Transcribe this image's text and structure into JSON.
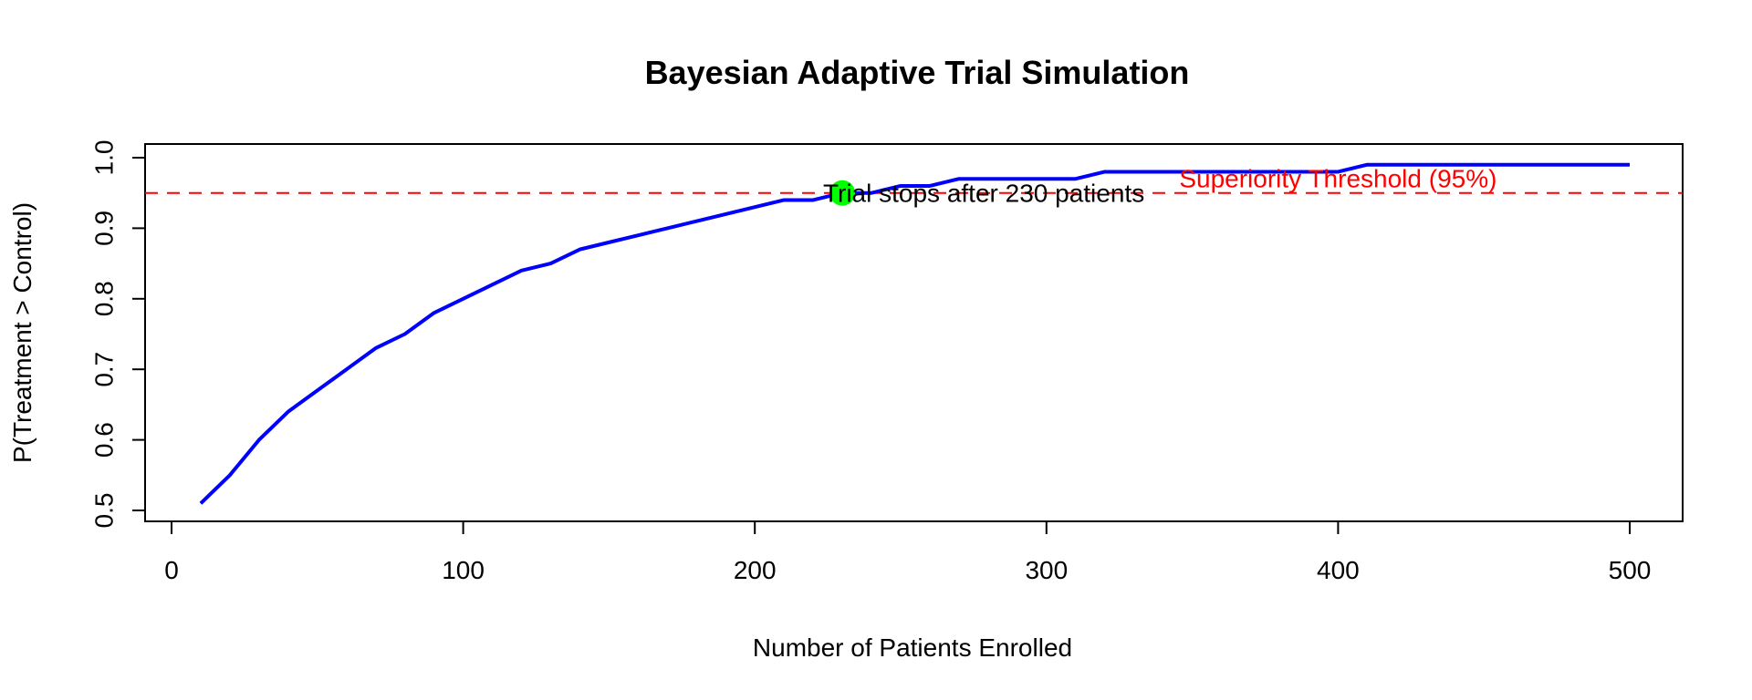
{
  "chart_data": {
    "type": "line",
    "title": "Bayesian Adaptive Trial Simulation",
    "xlabel": "Number of Patients Enrolled",
    "ylabel": "P(Treatment > Control)",
    "xlim": [
      0,
      520
    ],
    "ylim": [
      0.5,
      1.0
    ],
    "x_ticks": [
      0,
      100,
      200,
      300,
      400,
      500
    ],
    "y_ticks": [
      0.5,
      0.6,
      0.7,
      0.8,
      0.9,
      1.0
    ],
    "x_tick_labels": [
      "0",
      "100",
      "200",
      "300",
      "400",
      "500"
    ],
    "y_tick_labels": [
      "0.5",
      "0.6",
      "0.7",
      "0.8",
      "0.9",
      "1.0"
    ],
    "series": [
      {
        "color": "#0000ff",
        "x": [
          10,
          20,
          30,
          40,
          50,
          60,
          70,
          80,
          90,
          100,
          110,
          120,
          130,
          140,
          150,
          160,
          170,
          180,
          190,
          200,
          210,
          220,
          230,
          240,
          250,
          260,
          270,
          280,
          290,
          300,
          310,
          320,
          330,
          340,
          350,
          360,
          370,
          380,
          390,
          400,
          410,
          420,
          430,
          440,
          450,
          460,
          470,
          480,
          490,
          500
        ],
        "y": [
          0.51,
          0.55,
          0.6,
          0.64,
          0.67,
          0.7,
          0.73,
          0.75,
          0.78,
          0.8,
          0.82,
          0.84,
          0.85,
          0.87,
          0.88,
          0.89,
          0.9,
          0.91,
          0.92,
          0.93,
          0.94,
          0.94,
          0.95,
          0.95,
          0.96,
          0.96,
          0.97,
          0.97,
          0.97,
          0.97,
          0.97,
          0.98,
          0.98,
          0.98,
          0.98,
          0.98,
          0.98,
          0.98,
          0.98,
          0.98,
          0.99,
          0.99,
          0.99,
          0.99,
          0.99,
          0.99,
          0.99,
          0.99,
          0.99,
          0.99
        ]
      }
    ],
    "threshold": {
      "y": 0.95,
      "color": "#ff0000",
      "label": "Superiority Threshold (95%)"
    },
    "stop_point": {
      "x": 230,
      "y": 0.95,
      "color": "#00ff00",
      "label": "Trial stops after 230 patients"
    },
    "grid": false,
    "legend": "none"
  }
}
